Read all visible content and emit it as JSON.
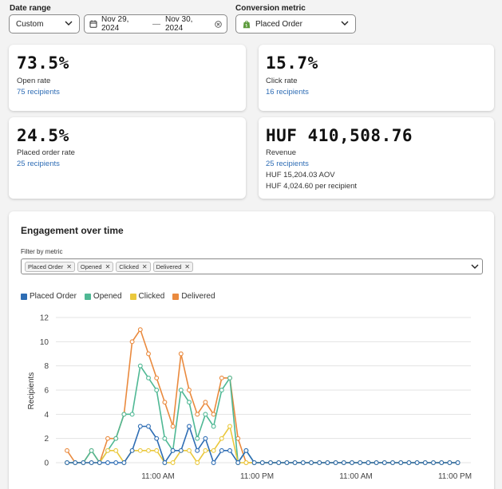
{
  "filters": {
    "date_range_label": "Date range",
    "date_preset": "Custom",
    "start_date": "Nov 29, 2024",
    "separator": "—",
    "end_date": "Nov 30, 2024",
    "metric_label": "Conversion metric",
    "metric_value": "Placed Order"
  },
  "stats": [
    {
      "value": "73.5%",
      "label": "Open rate",
      "link": "75 recipients"
    },
    {
      "value": "15.7%",
      "label": "Click rate",
      "link": "16 recipients"
    },
    {
      "value": "24.5%",
      "label": "Placed order rate",
      "link": "25 recipients"
    },
    {
      "value": "HUF 410,508.76",
      "label": "Revenue",
      "link": "25 recipients",
      "extra1": "HUF 15,204.03 AOV",
      "extra2": "HUF 4,024.60 per recipient"
    }
  ],
  "engagement": {
    "title": "Engagement over time",
    "filter_label": "Filter by metric",
    "chips": [
      "Placed Order",
      "Opened",
      "Clicked",
      "Delivered"
    ]
  },
  "chart_data": {
    "type": "line",
    "ylabel": "Recipients",
    "ylim": [
      0,
      12
    ],
    "yticks": [
      0,
      2,
      4,
      6,
      8,
      10,
      12
    ],
    "xtick_labels": [
      "11:00 AM",
      "11:00 PM",
      "11:00 AM",
      "11:00 PM"
    ],
    "legend_position": "top-left",
    "series": [
      {
        "name": "Placed Order",
        "color": "#2e6db4",
        "values": [
          0,
          0,
          0,
          0,
          0,
          0,
          0,
          0,
          1,
          3,
          3,
          2,
          0,
          1,
          1,
          3,
          1,
          2,
          0,
          1,
          1,
          0,
          1,
          0,
          0,
          0,
          0,
          0,
          0,
          0,
          0,
          0,
          0,
          0,
          0,
          0,
          0,
          0,
          0,
          0,
          0,
          0,
          0,
          0,
          0,
          0,
          0,
          0,
          0
        ]
      },
      {
        "name": "Opened",
        "color": "#4fb894",
        "values": [
          0,
          0,
          0,
          1,
          0,
          1,
          2,
          4,
          4,
          8,
          7,
          6,
          2,
          1,
          6,
          5,
          2,
          4,
          3,
          6,
          7,
          0,
          1,
          0,
          0,
          0,
          0,
          0,
          0,
          0,
          0,
          0,
          0,
          0,
          0,
          0,
          0,
          0,
          0,
          0,
          0,
          0,
          0,
          0,
          0,
          0,
          0,
          0,
          0
        ]
      },
      {
        "name": "Clicked",
        "color": "#eac83c",
        "values": [
          0,
          0,
          0,
          0,
          0,
          1,
          1,
          0,
          1,
          1,
          1,
          1,
          0,
          0,
          1,
          1,
          0,
          1,
          1,
          2,
          3,
          0,
          0,
          0,
          0,
          0,
          0,
          0,
          0,
          0,
          0,
          0,
          0,
          0,
          0,
          0,
          0,
          0,
          0,
          0,
          0,
          0,
          0,
          0,
          0,
          0,
          0,
          0,
          0
        ]
      },
      {
        "name": "Delivered",
        "color": "#ea8a3e",
        "values": [
          1,
          0,
          0,
          1,
          0,
          2,
          2,
          4,
          10,
          11,
          9,
          7,
          5,
          3,
          9,
          6,
          4,
          5,
          4,
          7,
          7,
          2,
          0,
          0,
          0,
          0,
          0,
          0,
          0,
          0,
          0,
          0,
          0,
          0,
          0,
          0,
          0,
          0,
          0,
          0,
          0,
          0,
          0,
          0,
          0,
          0,
          0,
          0,
          0
        ]
      }
    ]
  }
}
